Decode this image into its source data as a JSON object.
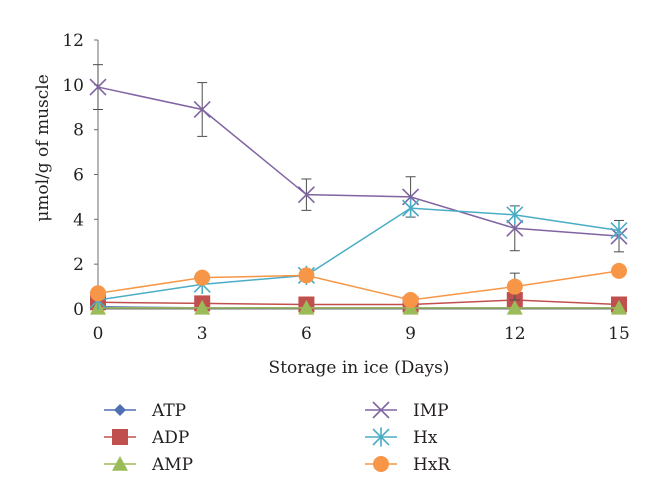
{
  "chart_data": {
    "type": "line",
    "xlabel": "Storage in ice (Days)",
    "ylabel": "μmol/g of muscle",
    "x": [
      0,
      3,
      6,
      9,
      12,
      15
    ],
    "xticks": [
      0,
      3,
      6,
      9,
      12,
      15
    ],
    "yticks": [
      0,
      2,
      4,
      6,
      8,
      10,
      12
    ],
    "xlim": [
      0,
      15
    ],
    "ylim": [
      0,
      12
    ],
    "grid": false,
    "legend_position": "bottom",
    "series": [
      {
        "name": "ATP",
        "values": [
          0.1,
          0.05,
          0.05,
          0.05,
          0.05,
          0.05
        ],
        "color": "#4f6fb3",
        "marker": "diamond"
      },
      {
        "name": "ADP",
        "values": [
          0.3,
          0.25,
          0.2,
          0.2,
          0.4,
          0.2
        ],
        "color": "#c0504d",
        "marker": "square"
      },
      {
        "name": "AMP",
        "values": [
          0.05,
          0.05,
          0.05,
          0.05,
          0.05,
          0.05
        ],
        "color": "#9bbb59",
        "marker": "triangle"
      },
      {
        "name": "IMP",
        "values": [
          9.9,
          8.9,
          5.1,
          5.0,
          3.6,
          3.25
        ],
        "color": "#8064a2",
        "marker": "x",
        "errors": [
          1.0,
          1.2,
          0.7,
          0.9,
          1.0,
          0.7
        ]
      },
      {
        "name": "Hx",
        "values": [
          0.4,
          1.1,
          1.5,
          4.5,
          4.2,
          3.5
        ],
        "color": "#4bacc6",
        "marker": "star"
      },
      {
        "name": "HxR",
        "values": [
          0.7,
          1.4,
          1.5,
          0.4,
          1.0,
          1.7
        ],
        "color": "#f79646",
        "marker": "circle",
        "errors": [
          0,
          0,
          0,
          0,
          0.6,
          0
        ]
      }
    ]
  }
}
